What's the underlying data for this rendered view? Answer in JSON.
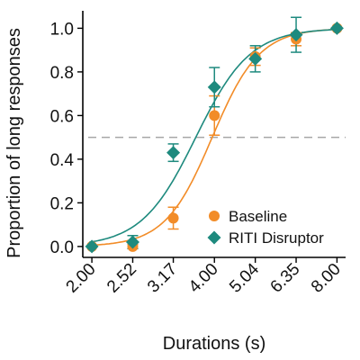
{
  "chart_data": {
    "type": "scatter",
    "xlabel": "Durations (s)",
    "ylabel": "Proportion of long responses",
    "x_tick_labels": [
      "2.00",
      "2.52",
      "3.17",
      "4.00",
      "5.04",
      "6.35",
      "8.00"
    ],
    "x_ticks": [
      2.0,
      2.52,
      3.17,
      4.0,
      5.04,
      6.35,
      8.0
    ],
    "x_scale": "log",
    "xlim": [
      1.9,
      8.4
    ],
    "ylim": [
      -0.05,
      1.08
    ],
    "y_ticks": [
      0.0,
      0.2,
      0.4,
      0.6,
      0.8,
      1.0
    ],
    "y_tick_labels": [
      "0.0",
      "0.2",
      "0.4",
      "0.6",
      "0.8",
      "1.0"
    ],
    "reference_line": {
      "y": 0.5,
      "style": "dashed",
      "color": "#a6a6a6"
    },
    "legend_position": "bottom-right",
    "series": [
      {
        "name": "Baseline",
        "marker": "circle",
        "color": "#f28c28",
        "x": [
          2.0,
          2.52,
          3.17,
          4.0,
          5.04,
          6.35,
          8.0
        ],
        "y": [
          0.0,
          0.0,
          0.13,
          0.6,
          0.87,
          0.95,
          1.0
        ],
        "err": [
          0.0,
          0.01,
          0.05,
          0.09,
          0.04,
          0.03,
          0.0
        ],
        "fit": {
          "mid": 3.95,
          "slope": 7.5
        }
      },
      {
        "name": "RITI Disruptor",
        "marker": "diamond",
        "color": "#1e8a7e",
        "x": [
          2.0,
          2.52,
          3.17,
          4.0,
          5.04,
          6.35,
          8.0
        ],
        "y": [
          0.0,
          0.02,
          0.43,
          0.73,
          0.86,
          0.97,
          1.0
        ],
        "err": [
          0.0,
          0.03,
          0.04,
          0.09,
          0.06,
          0.08,
          0.0
        ],
        "fit": {
          "mid": 3.6,
          "slope": 6.5
        }
      }
    ]
  }
}
